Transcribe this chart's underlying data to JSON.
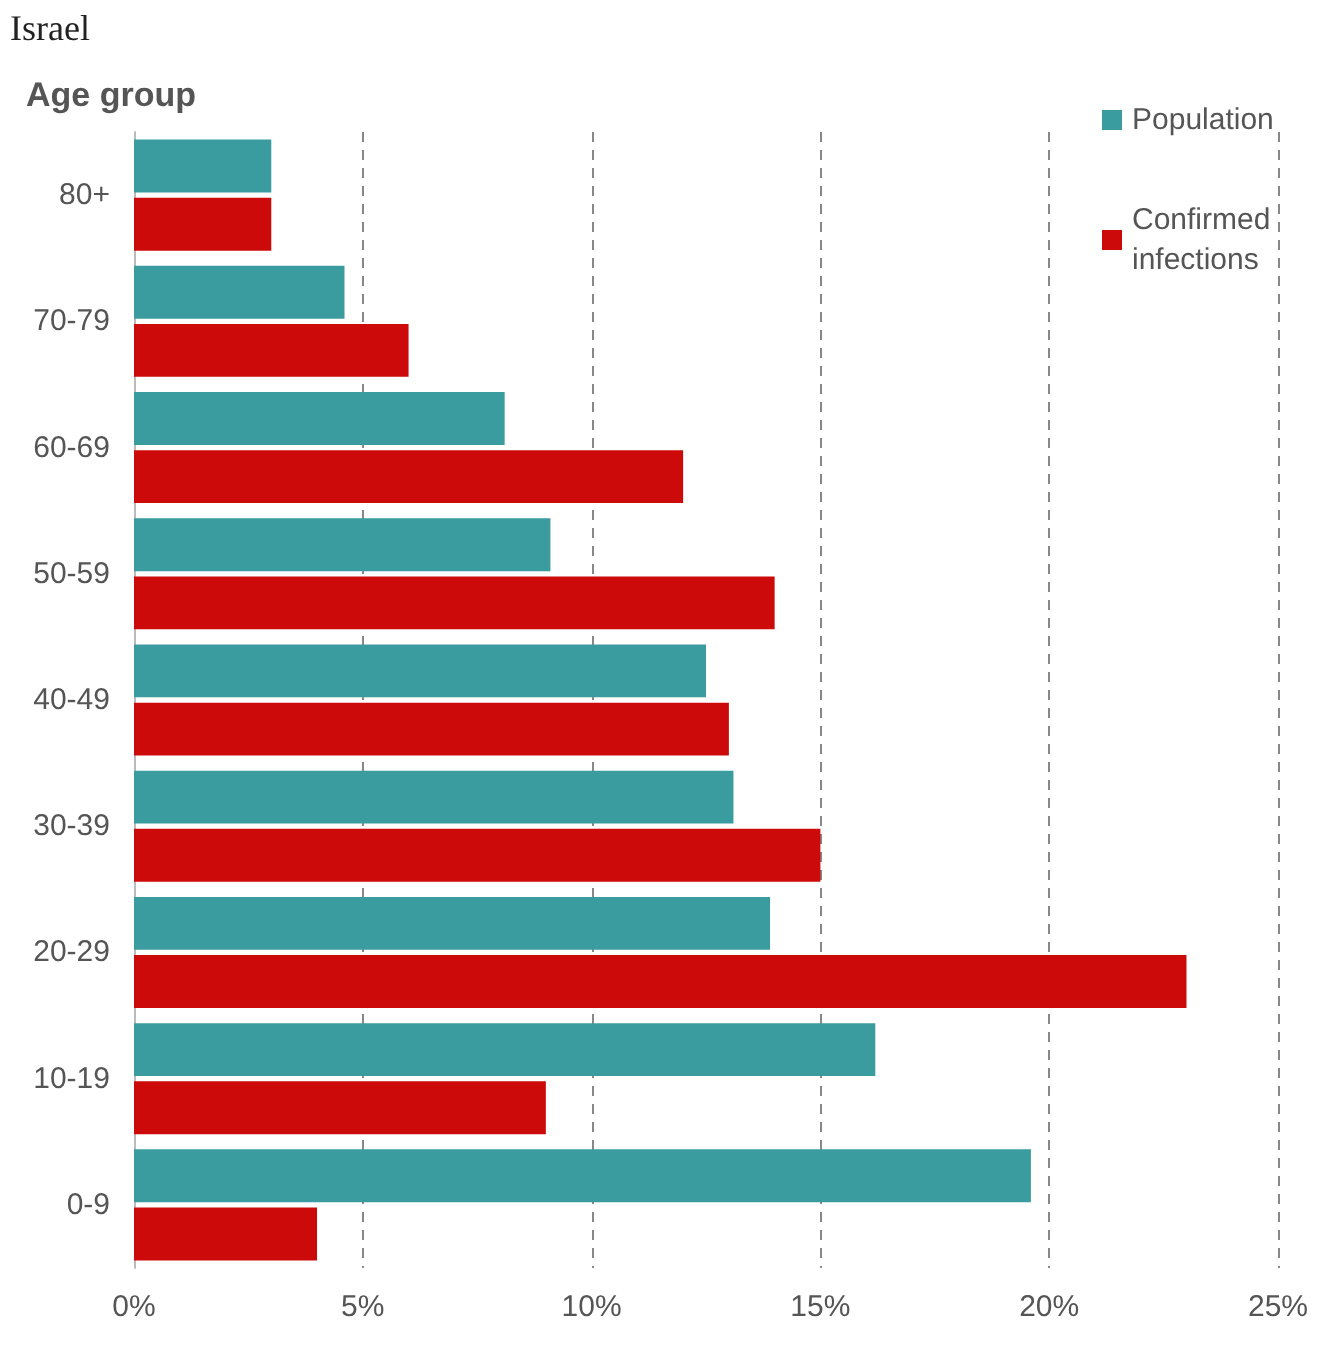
{
  "chart_data": {
    "type": "bar",
    "orientation": "horizontal",
    "title": "Israel",
    "ylabel": "Age group",
    "categories": [
      "80+",
      "70-79",
      "60-69",
      "50-59",
      "40-49",
      "30-39",
      "20-29",
      "10-19",
      "0-9"
    ],
    "series": [
      {
        "name": "Population",
        "color": "#3a9c9f",
        "values": [
          3.0,
          4.6,
          8.1,
          9.1,
          12.5,
          13.1,
          13.9,
          16.2,
          19.6
        ]
      },
      {
        "name": "Confirmed infections",
        "color": "#cc0a0a",
        "values": [
          3.0,
          6.0,
          12.0,
          14.0,
          13.0,
          15.0,
          23.0,
          9.0,
          4.0
        ]
      }
    ],
    "xlim": [
      0,
      25
    ],
    "xticks": [
      {
        "value": 0,
        "label": "0%"
      },
      {
        "value": 5,
        "label": "5%"
      },
      {
        "value": 10,
        "label": "10%"
      },
      {
        "value": 15,
        "label": "15%"
      },
      {
        "value": 20,
        "label": "20%"
      },
      {
        "value": 25,
        "label": "25%"
      }
    ],
    "grid": "x",
    "legend": "top right"
  }
}
